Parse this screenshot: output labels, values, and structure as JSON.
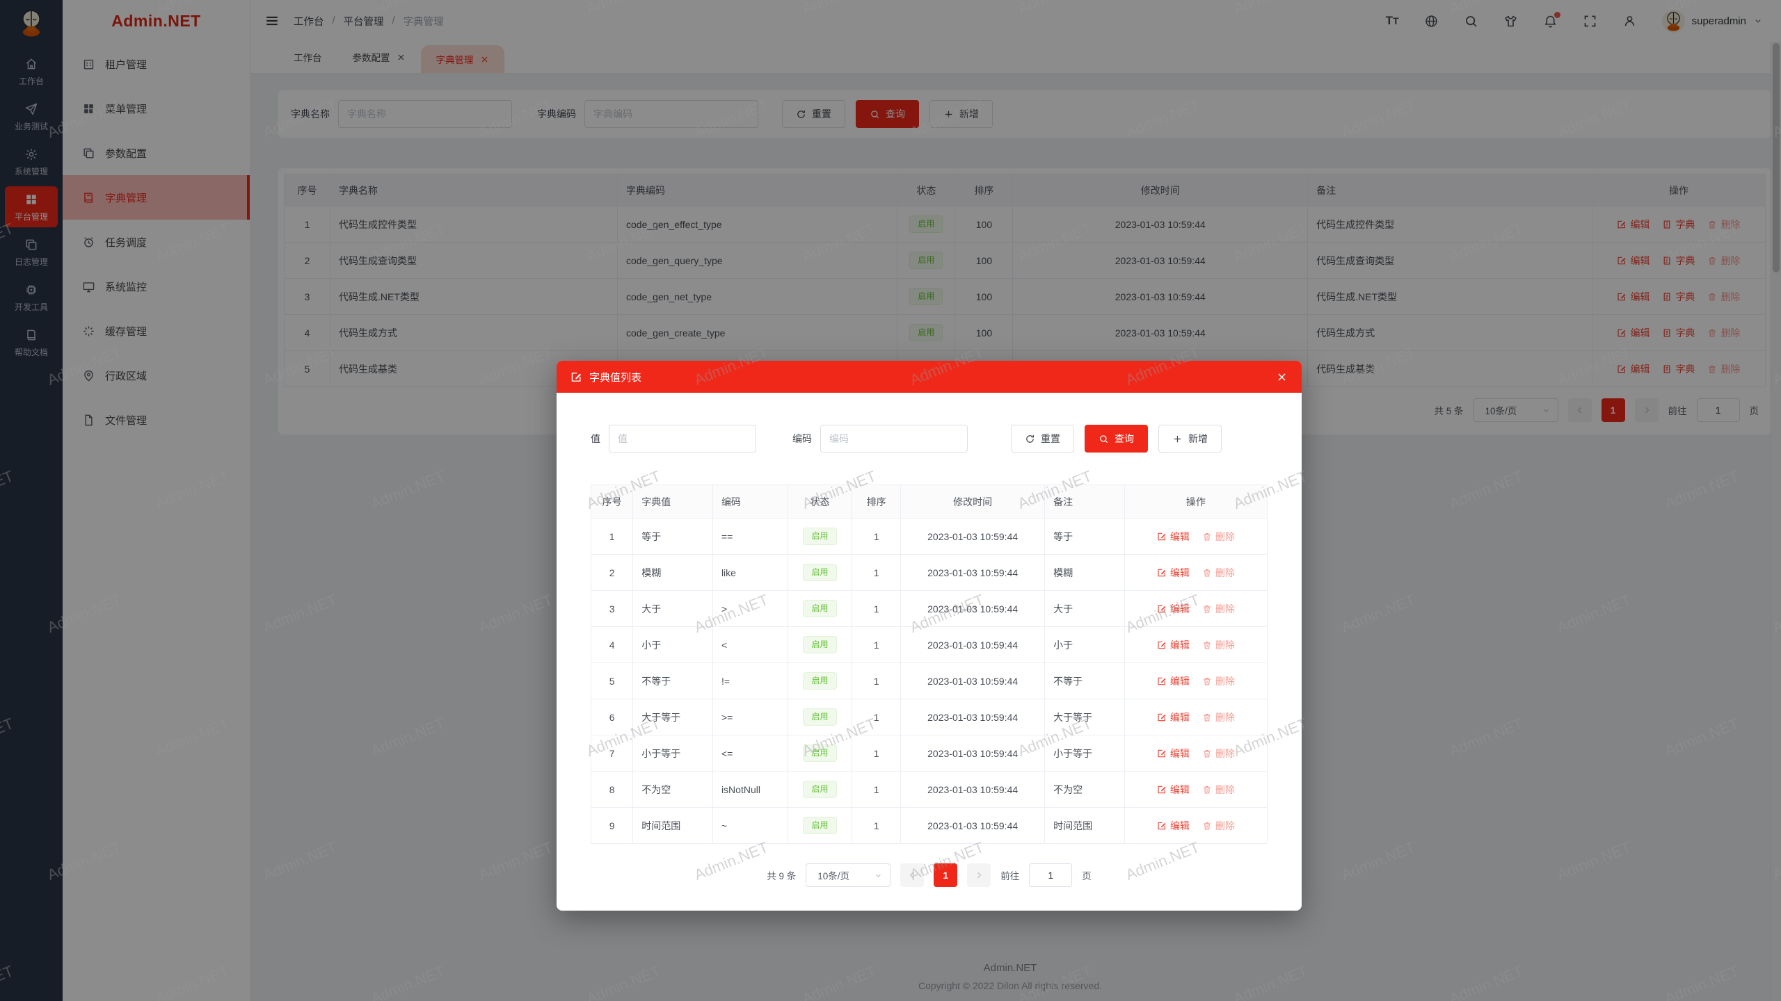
{
  "brand": {
    "logo_text": "Admin.NET"
  },
  "colors": {
    "accent": "#F0281A",
    "success_text": "#67C23A",
    "success_bg": "#F0F9EB",
    "rail_bg": "#2B3648"
  },
  "rail": {
    "items": [
      {
        "label": "工作台"
      },
      {
        "label": "业务测试"
      },
      {
        "label": "系统管理"
      },
      {
        "label": "平台管理"
      },
      {
        "label": "日志管理"
      },
      {
        "label": "开发工具"
      },
      {
        "label": "帮助文档"
      }
    ]
  },
  "sidebar": {
    "items": [
      {
        "label": "租户管理"
      },
      {
        "label": "菜单管理"
      },
      {
        "label": "参数配置"
      },
      {
        "label": "字典管理"
      },
      {
        "label": "任务调度"
      },
      {
        "label": "系统监控"
      },
      {
        "label": "缓存管理"
      },
      {
        "label": "行政区域"
      },
      {
        "label": "文件管理"
      }
    ]
  },
  "header": {
    "breadcrumb": [
      "工作台",
      "平台管理",
      "字典管理"
    ],
    "separator": "/",
    "username": "superadmin"
  },
  "tabs": [
    {
      "label": "工作台"
    },
    {
      "label": "参数配置"
    },
    {
      "label": "字典管理"
    }
  ],
  "search": {
    "name_label": "字典名称",
    "name_placeholder": "字典名称",
    "code_label": "字典编码",
    "code_placeholder": "字典编码",
    "reset": "重置",
    "query": "查询",
    "add": "新增"
  },
  "main_table": {
    "headers": [
      "序号",
      "字典名称",
      "字典编码",
      "状态",
      "排序",
      "修改时间",
      "备注",
      "操作"
    ],
    "ops": [
      "编辑",
      "字典",
      "删除"
    ],
    "rows": [
      {
        "no": "1",
        "name": "代码生成控件类型",
        "code": "code_gen_effect_type",
        "status": "启用",
        "sort": "100",
        "time": "2023-01-03 10:59:44",
        "remark": "代码生成控件类型"
      },
      {
        "no": "2",
        "name": "代码生成查询类型",
        "code": "code_gen_query_type",
        "status": "启用",
        "sort": "100",
        "time": "2023-01-03 10:59:44",
        "remark": "代码生成查询类型"
      },
      {
        "no": "3",
        "name": "代码生成.NET类型",
        "code": "code_gen_net_type",
        "status": "启用",
        "sort": "100",
        "time": "2023-01-03 10:59:44",
        "remark": "代码生成.NET类型"
      },
      {
        "no": "4",
        "name": "代码生成方式",
        "code": "code_gen_create_type",
        "status": "启用",
        "sort": "100",
        "time": "2023-01-03 10:59:44",
        "remark": "代码生成方式"
      },
      {
        "no": "5",
        "name": "代码生成基类",
        "code": "",
        "status": "",
        "sort": "",
        "time": "",
        "remark": "代码生成基类"
      }
    ]
  },
  "main_pagination": {
    "total": "共 5 条",
    "page_size": "10条/页",
    "page": "1",
    "goto": "前往",
    "goto_value": "1",
    "unit": "页"
  },
  "modal": {
    "title": "字典值列表",
    "search": {
      "value_label": "值",
      "value_placeholder": "值",
      "code_label": "编码",
      "code_placeholder": "编码",
      "reset": "重置",
      "query": "查询",
      "add": "新增"
    },
    "table": {
      "headers": [
        "序号",
        "字典值",
        "编码",
        "状态",
        "排序",
        "修改时间",
        "备注",
        "操作"
      ],
      "ops": [
        "编辑",
        "删除"
      ],
      "rows": [
        {
          "no": "1",
          "value": "等于",
          "code": "==",
          "status": "启用",
          "sort": "1",
          "time": "2023-01-03 10:59:44",
          "remark": "等于"
        },
        {
          "no": "2",
          "value": "模糊",
          "code": "like",
          "status": "启用",
          "sort": "1",
          "time": "2023-01-03 10:59:44",
          "remark": "模糊"
        },
        {
          "no": "3",
          "value": "大于",
          "code": ">",
          "status": "启用",
          "sort": "1",
          "time": "2023-01-03 10:59:44",
          "remark": "大于"
        },
        {
          "no": "4",
          "value": "小于",
          "code": "<",
          "status": "启用",
          "sort": "1",
          "time": "2023-01-03 10:59:44",
          "remark": "小于"
        },
        {
          "no": "5",
          "value": "不等于",
          "code": "!=",
          "status": "启用",
          "sort": "1",
          "time": "2023-01-03 10:59:44",
          "remark": "不等于"
        },
        {
          "no": "6",
          "value": "大于等于",
          "code": ">=",
          "status": "启用",
          "sort": "1",
          "time": "2023-01-03 10:59:44",
          "remark": "大于等于"
        },
        {
          "no": "7",
          "value": "小于等于",
          "code": "<=",
          "status": "启用",
          "sort": "1",
          "time": "2023-01-03 10:59:44",
          "remark": "小于等于"
        },
        {
          "no": "8",
          "value": "不为空",
          "code": "isNotNull",
          "status": "启用",
          "sort": "1",
          "time": "2023-01-03 10:59:44",
          "remark": "不为空"
        },
        {
          "no": "9",
          "value": "时间范围",
          "code": "~",
          "status": "启用",
          "sort": "1",
          "time": "2023-01-03 10:59:44",
          "remark": "时间范围"
        }
      ]
    },
    "pagination": {
      "total": "共 9 条",
      "page_size": "10条/页",
      "page": "1",
      "goto": "前往",
      "goto_value": "1",
      "unit": "页"
    }
  },
  "footer": {
    "line1": "Admin.NET",
    "line2": "Copyright © 2022 Dilon All rights reserved."
  },
  "watermark": {
    "text": "Admin.NET"
  }
}
